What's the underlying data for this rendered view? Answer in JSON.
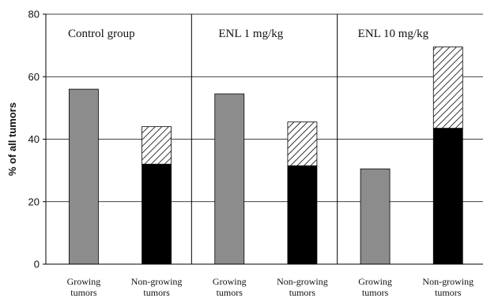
{
  "chart_data": {
    "type": "bar",
    "stacked": true,
    "ylabel": "% of all tumors",
    "ylim": [
      0,
      80
    ],
    "yticks": [
      0,
      20,
      40,
      60,
      80
    ],
    "grid": true,
    "legend": "none",
    "groups": [
      {
        "title": "Control group",
        "bars": [
          {
            "label": [
              "Growing",
              "tumors"
            ],
            "segments": [
              {
                "fill": "gray",
                "value": 56
              }
            ]
          },
          {
            "label": [
              "Non-growing",
              "tumors"
            ],
            "segments": [
              {
                "fill": "black",
                "value": 32
              },
              {
                "fill": "hatched",
                "value": 12
              }
            ]
          }
        ]
      },
      {
        "title": "ENL 1 mg/kg",
        "bars": [
          {
            "label": [
              "Growing",
              "tumors"
            ],
            "segments": [
              {
                "fill": "gray",
                "value": 54.5
              }
            ]
          },
          {
            "label": [
              "Non-growing",
              "tumors"
            ],
            "segments": [
              {
                "fill": "black",
                "value": 31.5
              },
              {
                "fill": "hatched",
                "value": 14
              }
            ]
          }
        ]
      },
      {
        "title": "ENL 10 mg/kg",
        "bars": [
          {
            "label": [
              "Growing",
              "tumors"
            ],
            "segments": [
              {
                "fill": "gray",
                "value": 30.5
              }
            ]
          },
          {
            "label": [
              "Non-growing",
              "tumors"
            ],
            "segments": [
              {
                "fill": "black",
                "value": 43.5
              },
              {
                "fill": "hatched",
                "value": 26
              }
            ]
          }
        ]
      }
    ],
    "colors": {
      "gray": "#8c8c8c",
      "black": "#000000",
      "hatch_line": "#000000",
      "grid": "#000000"
    }
  }
}
